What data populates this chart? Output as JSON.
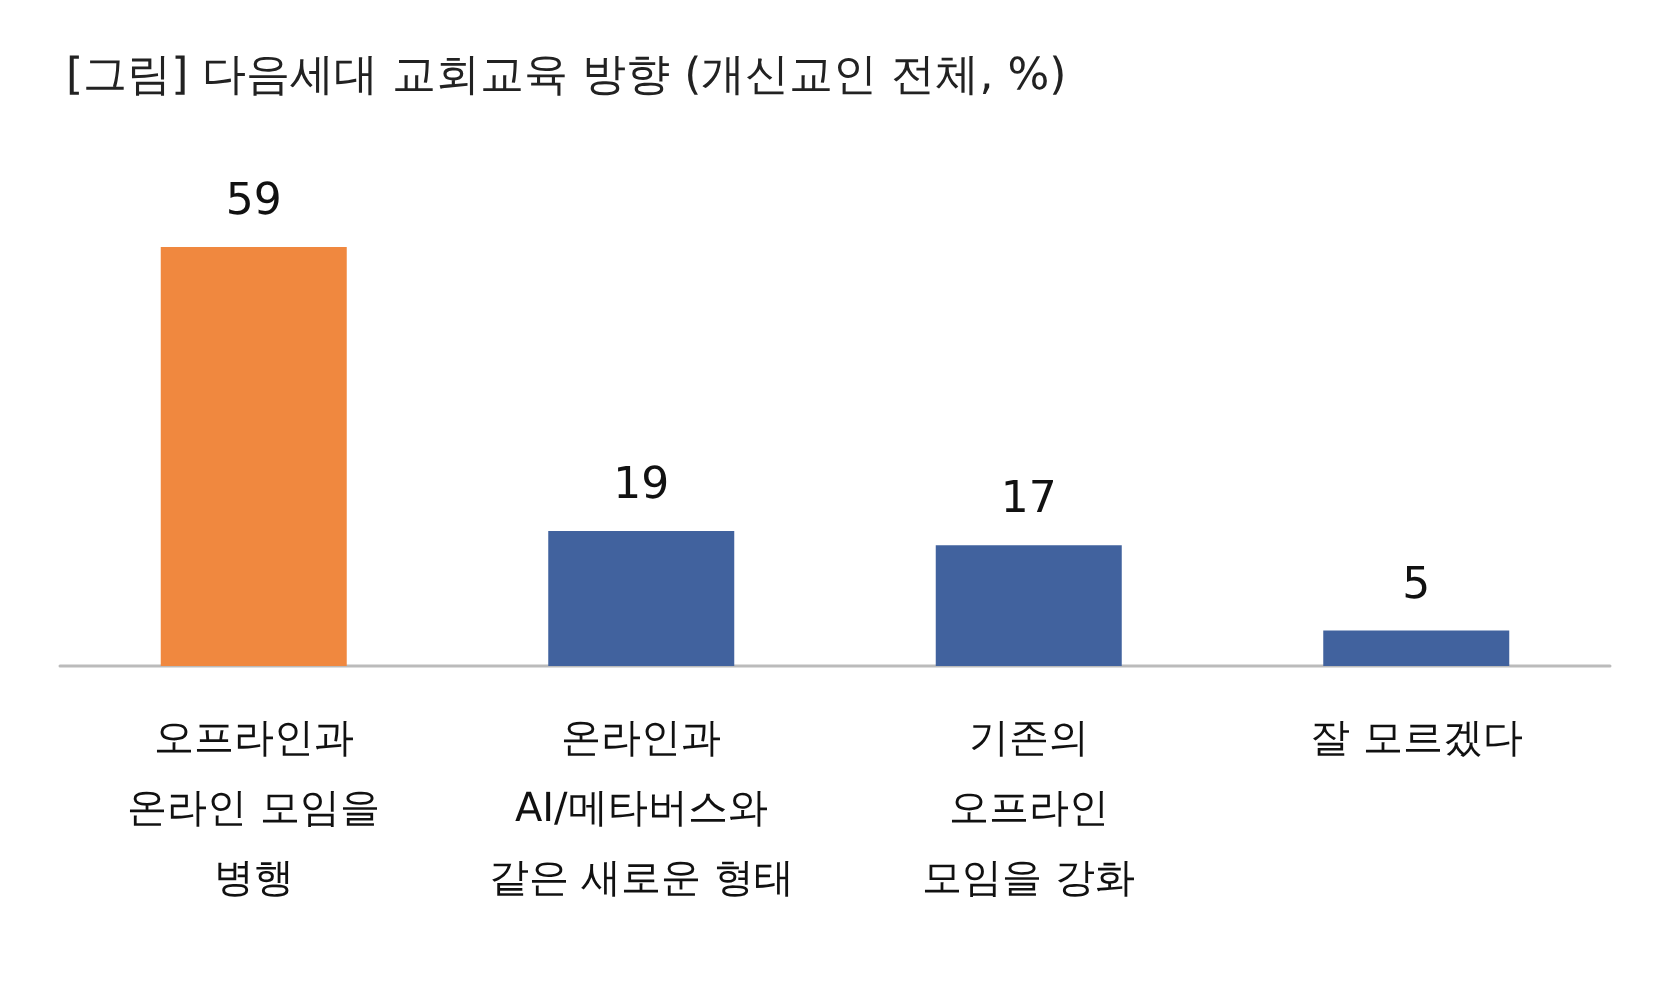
{
  "chart_data": {
    "type": "bar",
    "title": "[그림] 다음세대 교회교육 방향 (개신교인 전체, %)",
    "categories": [
      "오프라인과\n온라인 모임을\n병행",
      "온라인과\nAI/메타버스와\n같은 새로운 형태",
      "기존의\n오프라인\n모임을 강화",
      "잘 모르겠다"
    ],
    "values": [
      59,
      19,
      17,
      5
    ],
    "colors": [
      "#f0883f",
      "#41629e",
      "#41629e",
      "#41629e"
    ],
    "data_labels": true
  }
}
